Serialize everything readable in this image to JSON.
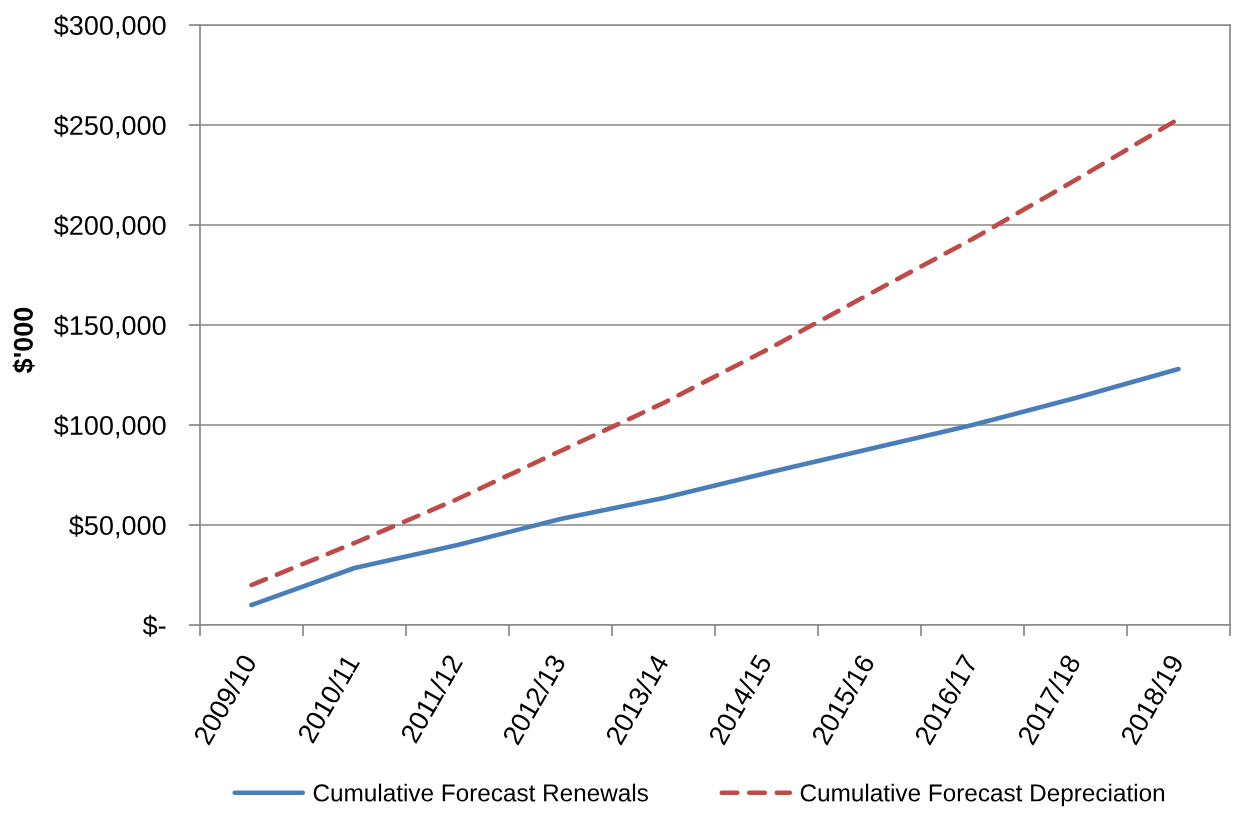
{
  "chart_data": {
    "type": "line",
    "ylabel": "$'000",
    "categories": [
      "2009/10",
      "2010/11",
      "2011/12",
      "2012/13",
      "2013/14",
      "2014/15",
      "2015/16",
      "2016/17",
      "2017/18",
      "2018/19"
    ],
    "series": [
      {
        "name": "Cumulative Forecast Renewals",
        "color": "#4a7ebb",
        "line_style": "solid",
        "values": [
          10000,
          28500,
          40000,
          53000,
          63500,
          76000,
          88000,
          100000,
          113500,
          128000
        ]
      },
      {
        "name": "Cumulative Forecast Depreciation",
        "color": "#be4b48",
        "line_style": "dashed",
        "values": [
          20000,
          41000,
          63000,
          87000,
          111000,
          137500,
          165500,
          193000,
          222500,
          253000
        ]
      }
    ],
    "ylim": [
      0,
      300000
    ],
    "yticks": [
      {
        "value": 0,
        "label": "$-"
      },
      {
        "value": 50000,
        "label": "$50,000"
      },
      {
        "value": 100000,
        "label": "$100,000"
      },
      {
        "value": 150000,
        "label": "$150,000"
      },
      {
        "value": 200000,
        "label": "$200,000"
      },
      {
        "value": 250000,
        "label": "$250,000"
      },
      {
        "value": 300000,
        "label": "$300,000"
      }
    ],
    "grid": "y",
    "legend": "bottom"
  }
}
